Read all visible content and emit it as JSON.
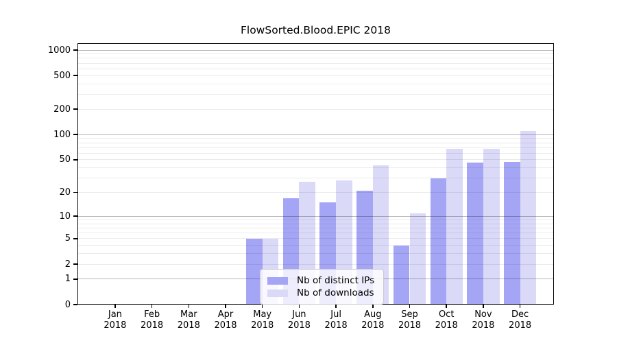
{
  "title": "FlowSorted.Blood.EPIC 2018",
  "chart_data": {
    "type": "bar",
    "title": "FlowSorted.Blood.EPIC 2018",
    "categories": [
      "Jan",
      "Feb",
      "Mar",
      "Apr",
      "May",
      "Jun",
      "Jul",
      "Aug",
      "Sep",
      "Oct",
      "Nov",
      "Dec"
    ],
    "x_tick_year": "2018",
    "series": [
      {
        "name": "Nb of distinct IPs",
        "color": "#a5a5f5",
        "values": [
          0,
          0,
          0,
          0,
          5,
          17,
          15,
          21,
          4,
          30,
          46,
          47
        ]
      },
      {
        "name": "Nb of downloads",
        "color": "#dadaf8",
        "values": [
          0,
          0,
          0,
          0,
          5,
          27,
          28,
          43,
          11,
          68,
          68,
          110
        ]
      }
    ],
    "yscale": "log1p",
    "ylim": [
      0,
      1000
    ],
    "y_ticks": [
      0,
      1,
      2,
      5,
      10,
      20,
      50,
      100,
      200,
      500,
      1000
    ],
    "grid": "on",
    "legend_position": "lower-center-inside",
    "colors": {
      "grid_major": "#b8b8b8",
      "grid_minor": "#ececec",
      "axis": "#000000",
      "background": "#ffffff",
      "legend_border": "#cccccc"
    }
  }
}
